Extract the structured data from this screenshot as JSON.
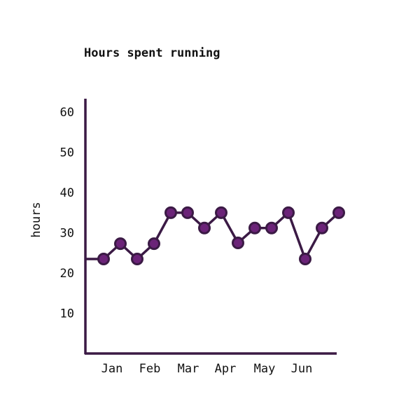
{
  "chart_data": {
    "type": "line",
    "title": "Hours spent running",
    "xlabel": "",
    "ylabel": "hours",
    "x_ticks": [
      "Jan",
      "Feb",
      "Mar",
      "Apr",
      "May",
      "Jun"
    ],
    "yticks": [
      10,
      20,
      30,
      40,
      50,
      60
    ],
    "ylim": [
      0,
      63
    ],
    "grid": false,
    "legend": "none",
    "series": [
      {
        "values": [
          23.5,
          23.5,
          27.3,
          23.5,
          27.3,
          35,
          35,
          31.2,
          35,
          27.5,
          31.2,
          31.2,
          35,
          23.5,
          31.2,
          35
        ]
      }
    ],
    "colors": {
      "line": "#3b1a45",
      "marker_fill": "#6b2378",
      "marker_stroke": "#3b1a45",
      "axis": "#3b1a45"
    }
  }
}
